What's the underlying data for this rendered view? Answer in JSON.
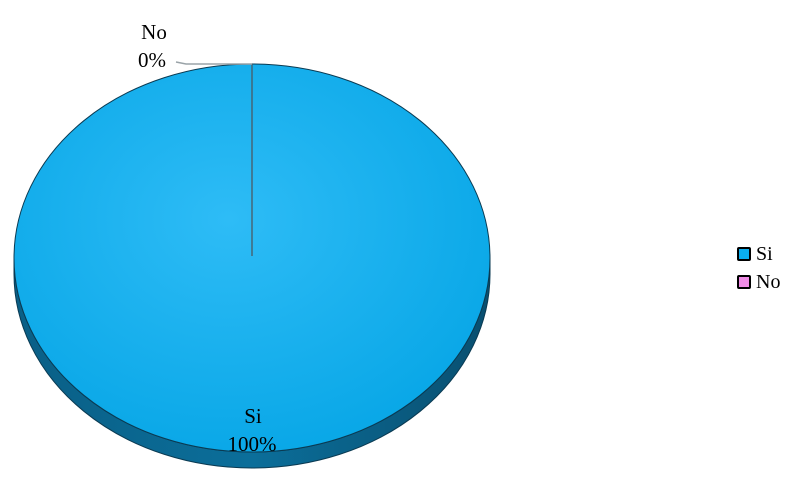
{
  "chart_data": {
    "type": "pie",
    "style": "3d",
    "categories": [
      "Si",
      "No"
    ],
    "values": [
      100,
      0
    ],
    "labels": [
      {
        "category": "Si",
        "percent": "100%"
      },
      {
        "category": "No",
        "percent": "0%"
      }
    ],
    "colors": {
      "Si": "#0aaef0",
      "No": "#f08ce6"
    },
    "legend": {
      "position": "right",
      "items": [
        {
          "label": "Si",
          "color": "#0aaef0"
        },
        {
          "label": "No",
          "color": "#f08ce6"
        }
      ]
    }
  }
}
